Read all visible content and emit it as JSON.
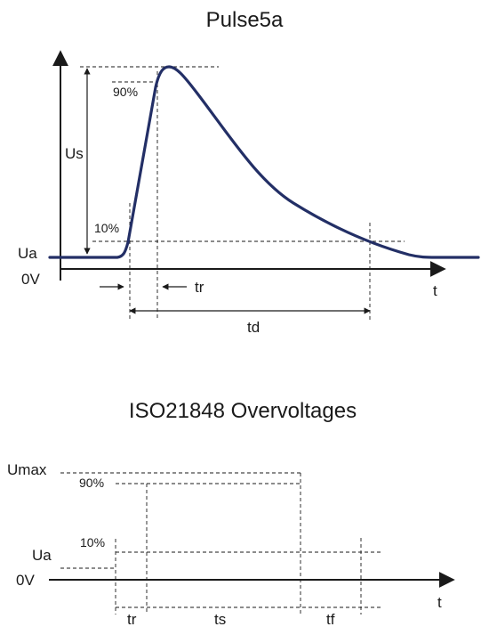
{
  "diagram1": {
    "title": "Pulse5a",
    "labels": {
      "us": "Us",
      "ua": "Ua",
      "zero_v": "0V",
      "p90": "90%",
      "p10": "10%",
      "t_axis": "t",
      "tr": "tr",
      "td": "td"
    },
    "colors": {
      "waveform": "#232f66"
    }
  },
  "diagram2": {
    "title": "ISO21848 Overvoltages",
    "labels": {
      "umax": "Umax",
      "ua": "Ua",
      "zero_v": "0V",
      "p90": "90%",
      "p10": "10%",
      "t_axis": "t",
      "tr": "tr",
      "ts": "ts",
      "tf": "tf"
    }
  }
}
